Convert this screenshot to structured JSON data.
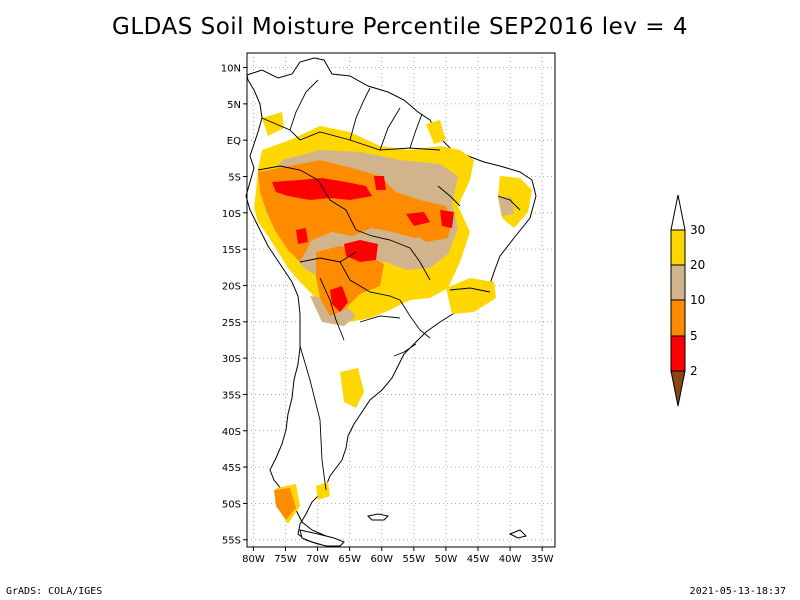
{
  "title": "GLDAS Soil Moisture Percentile SEP2016 lev = 4",
  "footer": {
    "left": "GrADS: COLA/IGES",
    "right": "2021-05-13-18:37"
  },
  "map": {
    "lon_labels": [
      "80W",
      "75W",
      "70W",
      "65W",
      "60W",
      "55W",
      "50W",
      "45W",
      "40W",
      "35W"
    ],
    "lat_labels": [
      "10N",
      "5N",
      "EQ",
      "5S",
      "10S",
      "15S",
      "20S",
      "25S",
      "30S",
      "35S",
      "40S",
      "45S",
      "50S",
      "55S"
    ],
    "lon_range": [
      -81,
      -33
    ],
    "lat_range": [
      -56,
      12
    ]
  },
  "legend": {
    "levels": [
      "2",
      "5",
      "10",
      "20",
      "30"
    ],
    "colors": {
      "lt2": "#8B4513",
      "2_5": "#FF0000",
      "5_10": "#FF8C00",
      "10_20": "#D2B48C",
      "20_30": "#FFD700",
      "gt30": "#FFFFFF"
    }
  },
  "chart_data": {
    "type": "heatmap",
    "title": "GLDAS Soil Moisture Percentile SEP2016 lev = 4",
    "xlabel": "",
    "ylabel": "",
    "x_ticks": [
      "80W",
      "75W",
      "70W",
      "65W",
      "60W",
      "55W",
      "50W",
      "45W",
      "40W",
      "35W"
    ],
    "y_ticks": [
      "10N",
      "5N",
      "EQ",
      "5S",
      "10S",
      "15S",
      "20S",
      "25S",
      "30S",
      "35S",
      "40S",
      "45S",
      "50S",
      "55S"
    ],
    "color_bins": [
      {
        "range": "<2",
        "color": "#8B4513"
      },
      {
        "range": "2-5",
        "color": "#FF0000"
      },
      {
        "range": "5-10",
        "color": "#FF8C00"
      },
      {
        "range": "10-20",
        "color": "#D2B48C"
      },
      {
        "range": "20-30",
        "color": "#FFD700"
      },
      {
        "range": ">30",
        "color": "#FFFFFF"
      }
    ],
    "grid": true
  }
}
